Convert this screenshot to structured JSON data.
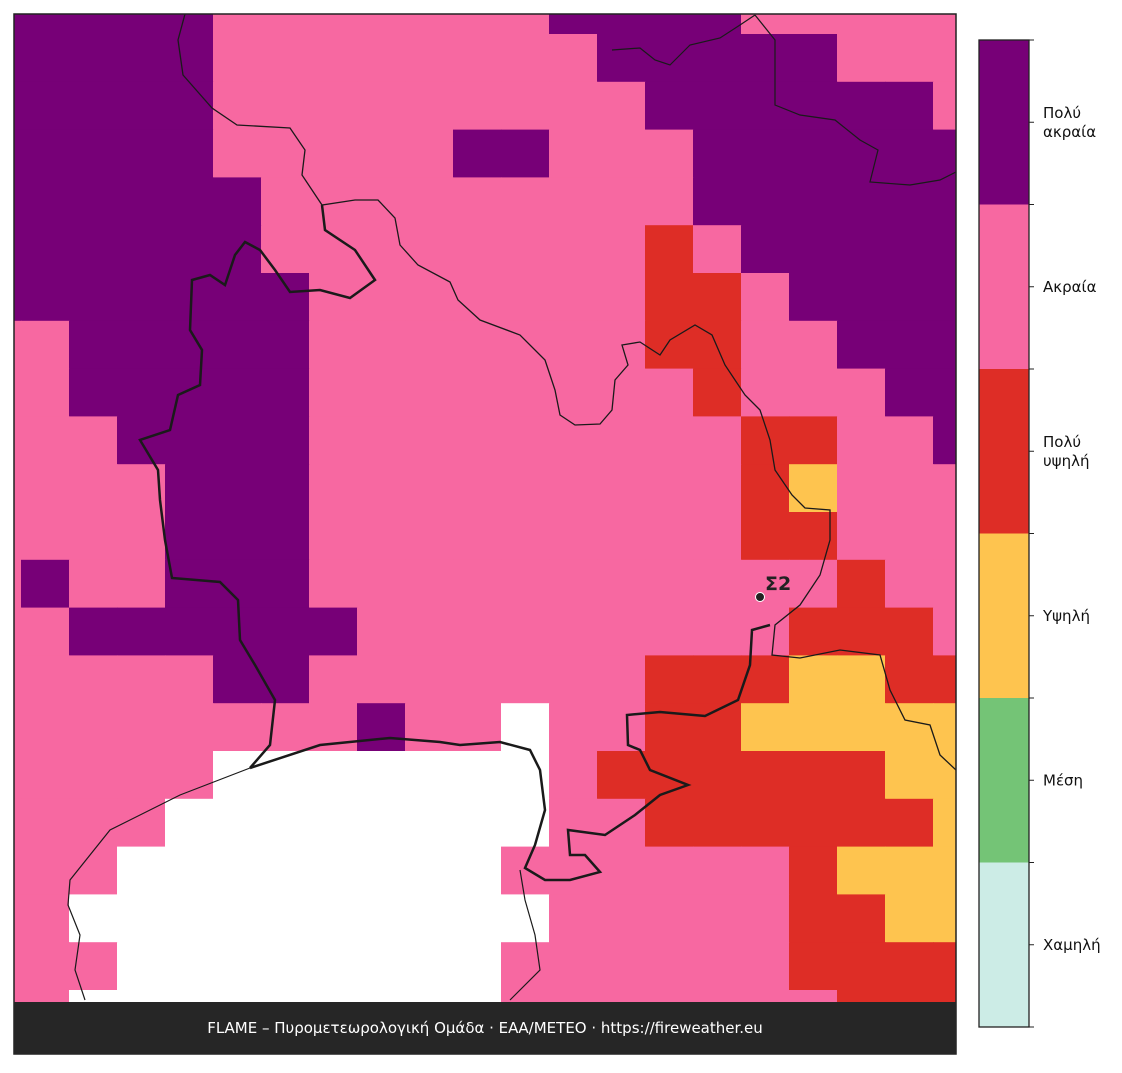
{
  "map": {
    "station": "Σ2",
    "footer": "FLAME – Πυρομετεωρολογική Ομάδα · ΕΑΑ/METEO · https://fireweather.eu",
    "legend": [
      {
        "label": [
          "Πολύ",
          "ακραία"
        ],
        "color": "#770077"
      },
      {
        "label": [
          "Ακραία"
        ],
        "color": "#f768a1"
      },
      {
        "label": [
          "Πολύ",
          "υψηλή"
        ],
        "color": "#de2d26"
      },
      {
        "label": [
          "Υψηλή"
        ],
        "color": "#fec44f"
      },
      {
        "label": [
          "Μέση"
        ],
        "color": "#74c476"
      },
      {
        "label": [
          "Χαμηλή"
        ],
        "color": "#ccece6"
      }
    ]
  }
}
